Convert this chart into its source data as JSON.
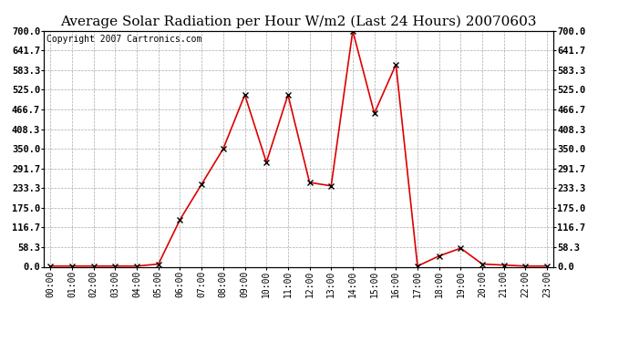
{
  "title": "Average Solar Radiation per Hour W/m2 (Last 24 Hours) 20070603",
  "copyright": "Copyright 2007 Cartronics.com",
  "hours": [
    "00:00",
    "01:00",
    "02:00",
    "03:00",
    "04:00",
    "05:00",
    "06:00",
    "07:00",
    "08:00",
    "09:00",
    "10:00",
    "11:00",
    "12:00",
    "13:00",
    "14:00",
    "15:00",
    "16:00",
    "17:00",
    "18:00",
    "19:00",
    "20:00",
    "21:00",
    "22:00",
    "23:00"
  ],
  "values": [
    2,
    2,
    2,
    2,
    2,
    8,
    140,
    245,
    350,
    510,
    310,
    510,
    250,
    240,
    700,
    455,
    600,
    2,
    32,
    55,
    8,
    5,
    2,
    2
  ],
  "line_color": "#dd0000",
  "marker": "x",
  "marker_color": "#000000",
  "bg_color": "#ffffff",
  "plot_bg_color": "#ffffff",
  "grid_color": "#aaaaaa",
  "ylim": [
    0,
    700
  ],
  "yticks": [
    0.0,
    58.3,
    116.7,
    175.0,
    233.3,
    291.7,
    350.0,
    408.3,
    466.7,
    525.0,
    583.3,
    641.7,
    700.0
  ],
  "ytick_labels": [
    "0.0",
    "58.3",
    "116.7",
    "175.0",
    "233.3",
    "291.7",
    "350.0",
    "408.3",
    "466.7",
    "525.0",
    "583.3",
    "641.7",
    "700.0"
  ],
  "title_fontsize": 11,
  "copyright_fontsize": 7,
  "tick_fontsize": 7.5,
  "xtick_fontsize": 7
}
